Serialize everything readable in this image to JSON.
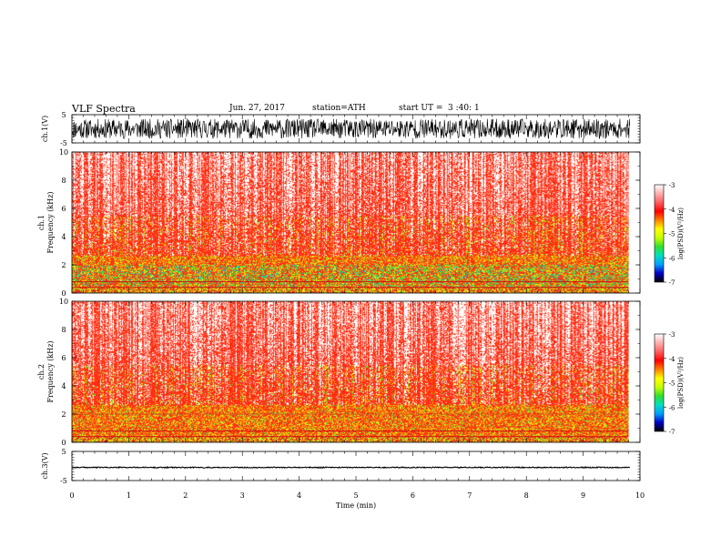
{
  "header": {
    "title": "VLF  Spectra",
    "date": "Jun. 27, 2017",
    "station": "station=ATH",
    "start_label": "start  UT  =",
    "start_time": "3  :40: 1"
  },
  "colors": {
    "waveform": "#000000",
    "spectro_background": "#ff2a10",
    "colormap": [
      "#000000",
      "#0000c8",
      "#00a0ff",
      "#00e0c0",
      "#30e030",
      "#c8ff00",
      "#ffff00",
      "#ff8000",
      "#ff0000",
      "#ff6060",
      "#ffb0b0",
      "#ffffff"
    ]
  },
  "chart_data": [
    {
      "type": "line",
      "name": "ch1-waveform",
      "ylabel": "ch.1(V)",
      "ylim": [
        -5,
        5
      ],
      "yticks": [
        "5",
        "-5"
      ],
      "xlim": [
        0,
        10
      ],
      "amplitude_range": [
        -3.5,
        3.5
      ]
    },
    {
      "type": "heatmap",
      "name": "ch1-spectrogram",
      "ylabel_line1": "ch.1",
      "ylabel_line2": "Frequency  (kHz)",
      "ylim": [
        0,
        10
      ],
      "yticks": [
        "0",
        "2",
        "4",
        "6",
        "8",
        "10"
      ],
      "xlim": [
        0,
        10
      ],
      "data_extent_min": 9.8,
      "colorbar": {
        "label": "log(PSD)(V²/Hz)",
        "range": [
          -7,
          -3
        ],
        "ticks": [
          "-3",
          "-4",
          "-5",
          "-6",
          "-7"
        ]
      }
    },
    {
      "type": "heatmap",
      "name": "ch2-spectrogram",
      "ylabel_line1": "ch.2",
      "ylabel_line2": "Frequency  (kHz)",
      "ylim": [
        0,
        10
      ],
      "yticks": [
        "0",
        "2",
        "4",
        "6",
        "8",
        "10"
      ],
      "xlim": [
        0,
        10
      ],
      "data_extent_min": 9.8,
      "colorbar": {
        "label": "log(PSD)(V²/Hz)",
        "range": [
          -7,
          -3
        ],
        "ticks": [
          "-3",
          "-4",
          "-5",
          "-6",
          "-7"
        ]
      }
    },
    {
      "type": "line",
      "name": "ch3-waveform",
      "ylabel": "ch.3(V)",
      "ylim": [
        -5,
        5
      ],
      "yticks": [
        "5",
        "-5"
      ],
      "xlim": [
        0,
        10
      ],
      "baseline": -0.5,
      "xlabel": "Time  (min)",
      "xticks": [
        "0",
        "1",
        "2",
        "3",
        "4",
        "5",
        "6",
        "7",
        "8",
        "9",
        "10"
      ]
    }
  ]
}
